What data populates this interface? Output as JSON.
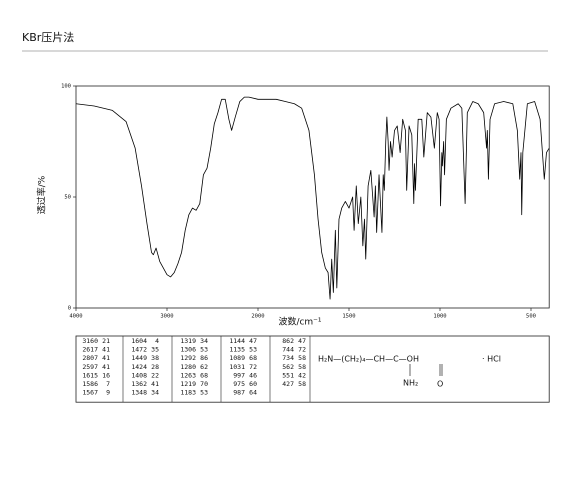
{
  "chart_data": {
    "type": "line",
    "title": "KBr压片法",
    "xlabel": "波数/cm⁻¹",
    "ylabel": "透过率/%",
    "xlim": [
      4000,
      400
    ],
    "xticks": [
      4000,
      3000,
      2000,
      1500,
      1000,
      500
    ],
    "ylim": [
      0,
      100
    ],
    "yticks": [
      0,
      50,
      100
    ],
    "series": [
      {
        "color": "#000000",
        "x": [
          4000,
          3800,
          3600,
          3450,
          3350,
          3280,
          3220,
          3170,
          3150,
          3120,
          3080,
          3040,
          3000,
          2960,
          2920,
          2880,
          2840,
          2800,
          2760,
          2720,
          2680,
          2640,
          2600,
          2560,
          2520,
          2480,
          2440,
          2400,
          2360,
          2320,
          2290,
          2250,
          2200,
          2150,
          2100,
          2000,
          1900,
          1850,
          1800,
          1760,
          1720,
          1690,
          1670,
          1650,
          1630,
          1615,
          1604,
          1595,
          1586,
          1575,
          1567,
          1555,
          1540,
          1520,
          1500,
          1480,
          1472,
          1460,
          1449,
          1435,
          1424,
          1415,
          1408,
          1395,
          1380,
          1362,
          1355,
          1348,
          1335,
          1319,
          1312,
          1306,
          1298,
          1292,
          1285,
          1280,
          1272,
          1263,
          1250,
          1235,
          1219,
          1205,
          1190,
          1183,
          1170,
          1155,
          1144,
          1140,
          1135,
          1120,
          1100,
          1089,
          1070,
          1050,
          1031,
          1015,
          1005,
          997,
          990,
          987,
          980,
          975,
          965,
          940,
          900,
          880,
          862,
          850,
          820,
          790,
          760,
          744,
          740,
          734,
          725,
          700,
          650,
          600,
          575,
          562,
          555,
          551,
          545,
          520,
          480,
          450,
          427,
          415,
          400
        ],
        "values": [
          92,
          91,
          89,
          84,
          72,
          55,
          38,
          25,
          24,
          27,
          21,
          18,
          15,
          14,
          16,
          20,
          25,
          35,
          42,
          45,
          44,
          47,
          60,
          63,
          72,
          83,
          88,
          94,
          94,
          85,
          80,
          86,
          93,
          95,
          95,
          94,
          94,
          93,
          92,
          90,
          80,
          60,
          40,
          25,
          18,
          16,
          4,
          22,
          7,
          35,
          9,
          40,
          45,
          48,
          45,
          50,
          35,
          55,
          38,
          50,
          28,
          40,
          22,
          55,
          62,
          41,
          55,
          34,
          60,
          34,
          60,
          53,
          75,
          86,
          75,
          62,
          75,
          68,
          80,
          82,
          70,
          85,
          80,
          53,
          82,
          78,
          47,
          65,
          53,
          85,
          85,
          68,
          88,
          86,
          72,
          88,
          85,
          46,
          70,
          64,
          75,
          60,
          85,
          90,
          92,
          90,
          47,
          88,
          93,
          92,
          88,
          72,
          80,
          58,
          85,
          92,
          93,
          92,
          80,
          58,
          70,
          42,
          70,
          92,
          93,
          85,
          58,
          70,
          72
        ]
      }
    ]
  },
  "peak_table": {
    "rows": [
      [
        3160,
        21,
        1604,
        4,
        1319,
        34,
        1144,
        47,
        862,
        47
      ],
      [
        2617,
        41,
        1472,
        35,
        1306,
        53,
        1135,
        53,
        744,
        72
      ],
      [
        2807,
        41,
        1449,
        38,
        1292,
        86,
        1089,
        68,
        734,
        58
      ],
      [
        2597,
        41,
        1424,
        28,
        1280,
        62,
        1031,
        72,
        562,
        58
      ],
      [
        1615,
        16,
        1408,
        22,
        1263,
        68,
        997,
        46,
        551,
        42
      ],
      [
        1586,
        7,
        1362,
        41,
        1219,
        70,
        975,
        60,
        427,
        58
      ],
      [
        1567,
        9,
        1348,
        34,
        1183,
        53,
        987,
        64
      ]
    ]
  },
  "formula": {
    "main": "H₂N—(CH₂)₄—CH—C—OH",
    "salt": "·  HCl",
    "amine": "NH₂",
    "oxo": "O"
  }
}
